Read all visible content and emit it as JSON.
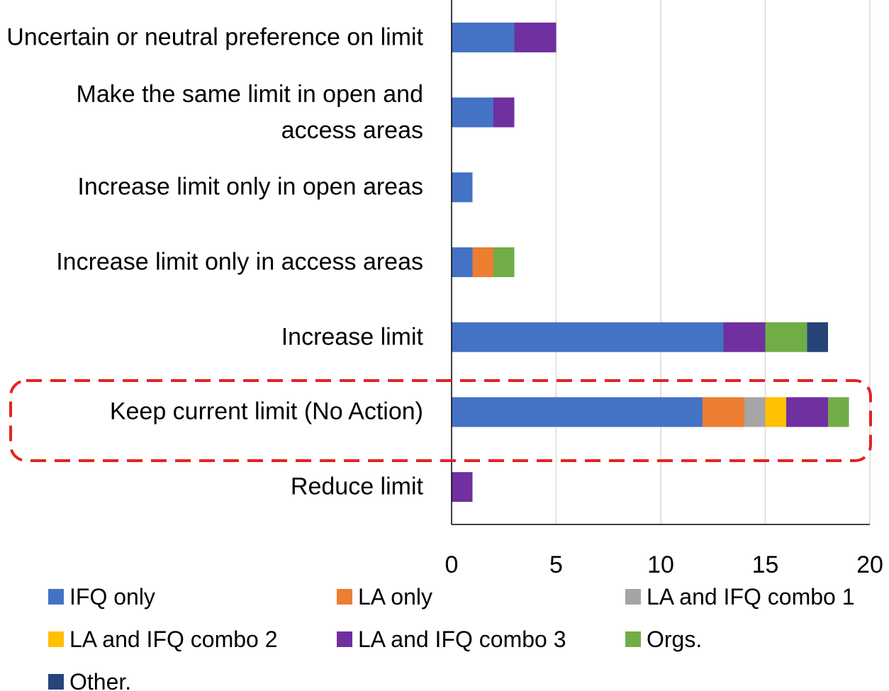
{
  "chart_data": {
    "type": "stacked_barh",
    "categories": [
      "Uncertain or neutral preference on limit",
      "Make the same limit in open and access areas",
      "Increase limit only in open areas",
      "Increase limit only in access areas",
      "Increase limit",
      "Keep current limit (No Action)",
      "Reduce limit"
    ],
    "series": [
      {
        "name": "IFQ only",
        "color": "#4472c4",
        "values": [
          3,
          2,
          1,
          1,
          13,
          12,
          0
        ]
      },
      {
        "name": "LA only",
        "color": "#ed7d31",
        "values": [
          0,
          0,
          0,
          1,
          0,
          2,
          0
        ]
      },
      {
        "name": "LA and IFQ combo 1",
        "color": "#a5a5a5",
        "values": [
          0,
          0,
          0,
          0,
          0,
          1,
          0
        ]
      },
      {
        "name": "LA and IFQ combo 2",
        "color": "#ffc000",
        "values": [
          0,
          0,
          0,
          0,
          0,
          1,
          0
        ]
      },
      {
        "name": "LA and IFQ combo 3",
        "color": "#7030a0",
        "values": [
          2,
          1,
          0,
          0,
          2,
          2,
          1
        ]
      },
      {
        "name": "Orgs.",
        "color": "#70ad47",
        "values": [
          0,
          0,
          0,
          1,
          2,
          1,
          0
        ]
      },
      {
        "name": "Other.",
        "color": "#264478",
        "values": [
          0,
          0,
          0,
          0,
          1,
          0,
          0
        ]
      }
    ],
    "xlim": [
      0,
      20
    ],
    "xticks": [
      0,
      5,
      10,
      15,
      20
    ],
    "grid": true,
    "legend": "bottom"
  }
}
